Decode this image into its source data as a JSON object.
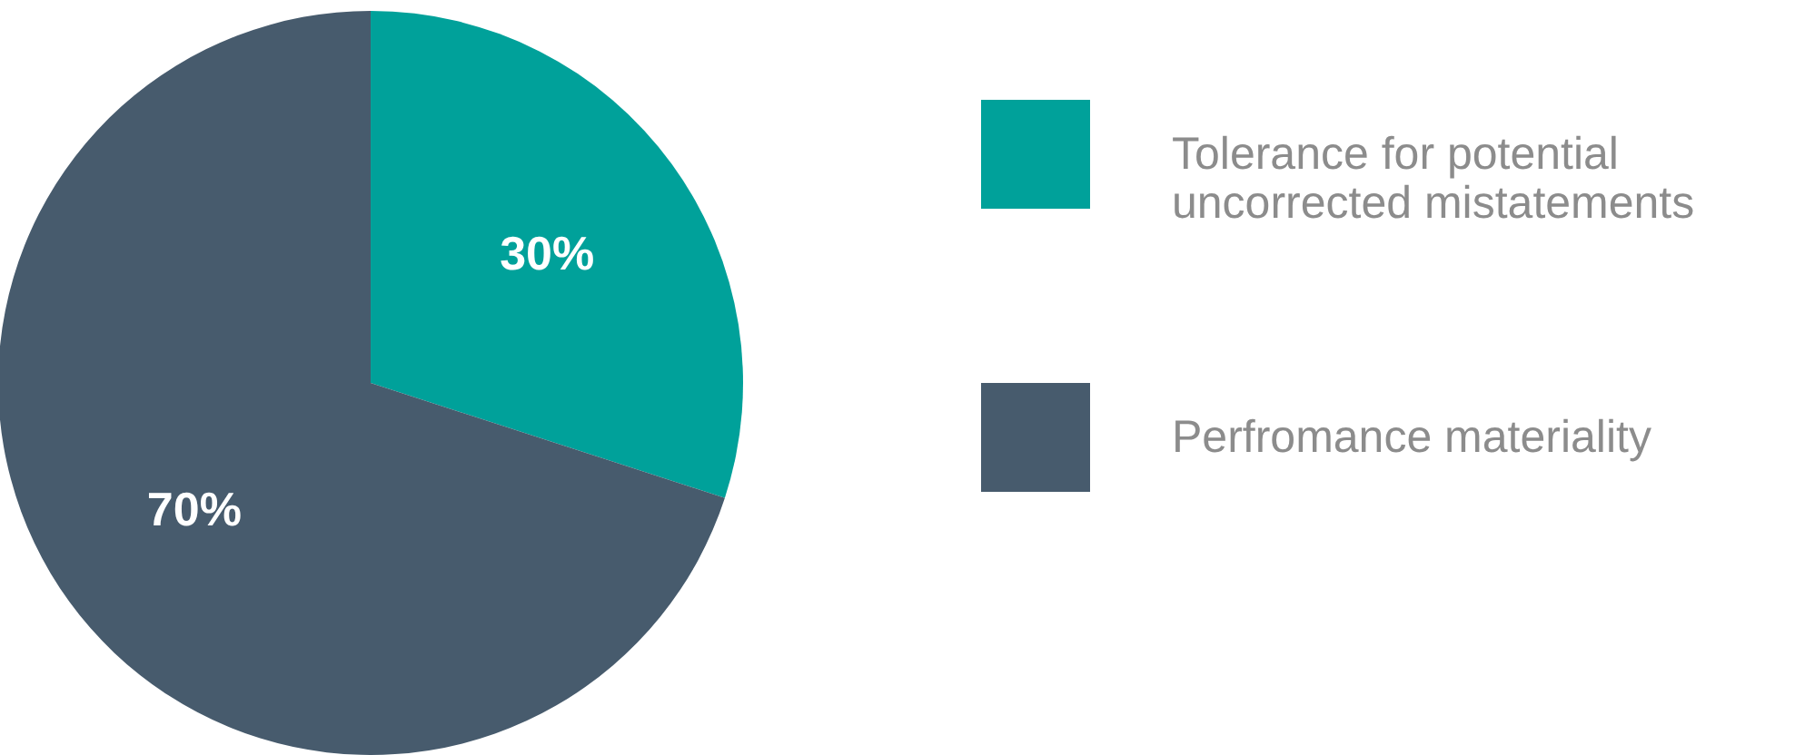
{
  "chart_data": {
    "type": "pie",
    "categories": [
      "Tolerance for potential uncorrected mistatements",
      "Perfromance materiality"
    ],
    "values": [
      30,
      70
    ],
    "colors": [
      "#00a19a",
      "#475b6d"
    ],
    "value_labels": [
      "30%",
      "70%"
    ],
    "legend": "right"
  }
}
